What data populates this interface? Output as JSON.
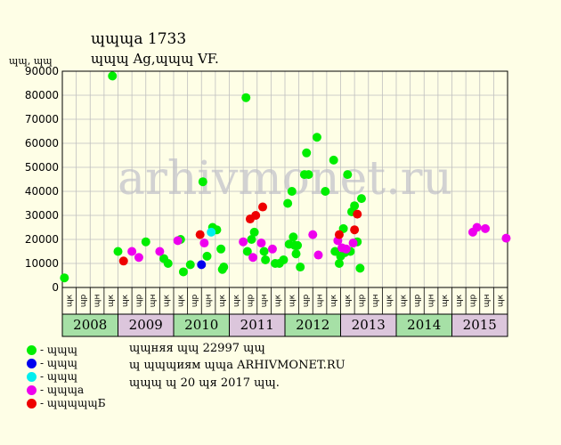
{
  "header": {
    "title": "ɰɰɰа 1733",
    "subtitle": "ɰɰɰ Ag,ɰɰɰ VF.",
    "ylabel": "ɰɰ, ɰɰ"
  },
  "watermark": "arhivmonet.ru",
  "info": {
    "line1": "ɰɰняя ɰɰ 22997 ɰɰ",
    "line2": "ɰ ɰɰɰиям ɰɰа ARHIVMONET.RU",
    "line3": "ɰɰɰ ɰ 20 ɰя 2017 ɰɰ."
  },
  "legend": [
    {
      "label": "- ɰɰɰ",
      "color": "#00ee00",
      "icon": "green-dot-icon"
    },
    {
      "label": "- ɰɰɰ",
      "color": "#0000ee",
      "icon": "blue-dot-icon"
    },
    {
      "label": "- ɰɰɰ",
      "color": "#00eeee",
      "icon": "cyan-dot-icon"
    },
    {
      "label": "- ɰɰɰа",
      "color": "#ee00ee",
      "icon": "magenta-dot-icon"
    },
    {
      "label": "- ɰɰɰɰɰБ",
      "color": "#ee0000",
      "icon": "red-dot-icon"
    }
  ],
  "colors": {
    "background": "#fefee6",
    "plot_bg": "#fefee6",
    "grid": "#bfbfbf",
    "year_a": "#a6e0a6",
    "year_b": "#dcc6dc"
  },
  "chart_data": {
    "type": "scatter",
    "title": "ɰɰɰа 1733",
    "ylabel": "ɰɰ, ɰɰ",
    "ylim": [
      0,
      90000
    ],
    "yticks": [
      "0",
      "10000",
      "20000",
      "30000",
      "40000",
      "50000",
      "60000",
      "70000",
      "80000",
      "90000"
    ],
    "grid": true,
    "x_unit": "quarter index (0 = 1st quarter 2008)",
    "quarter_labels": [
      "ɰк",
      "ɰр",
      "ɰн",
      "ɰк",
      "ɰк",
      "ɰр",
      "ɰн",
      "ɰк",
      "ɰк",
      "ɰр",
      "ɰн",
      "ɰк",
      "ɰк",
      "ɰр",
      "ɰн",
      "ɰк",
      "ɰк",
      "ɰр",
      "ɰн",
      "ɰк",
      "ɰк",
      "ɰр",
      "ɰн",
      "ɰк",
      "ɰк",
      "ɰр",
      "ɰн",
      "ɰк",
      "ɰк",
      "ɰр",
      "ɰн",
      "ɰк"
    ],
    "years": [
      {
        "label": "2008",
        "start": 0,
        "end": 4
      },
      {
        "label": "2009",
        "start": 4,
        "end": 8
      },
      {
        "label": "2010",
        "start": 8,
        "end": 12
      },
      {
        "label": "2011",
        "start": 12,
        "end": 16
      },
      {
        "label": "2012",
        "start": 16,
        "end": 20
      },
      {
        "label": "2013",
        "start": 20,
        "end": 24
      },
      {
        "label": "2014",
        "start": 24,
        "end": 28
      },
      {
        "label": "2015",
        "start": 28,
        "end": 32
      }
    ],
    "series": [
      {
        "color": "#00ee00",
        "points": [
          [
            0.15,
            4000
          ],
          [
            3.6,
            88000
          ],
          [
            4.0,
            15000
          ],
          [
            6.0,
            19000
          ],
          [
            7.3,
            12000
          ],
          [
            7.6,
            10000
          ],
          [
            8.5,
            20000
          ],
          [
            8.7,
            6500
          ],
          [
            9.2,
            9500
          ],
          [
            10.1,
            44000
          ],
          [
            10.4,
            13000
          ],
          [
            10.8,
            25000
          ],
          [
            11.1,
            24000
          ],
          [
            11.4,
            16000
          ],
          [
            11.5,
            7500
          ],
          [
            11.6,
            8500
          ],
          [
            13.2,
            79000
          ],
          [
            13.3,
            15000
          ],
          [
            13.6,
            20000
          ],
          [
            13.8,
            23000
          ],
          [
            14.5,
            15000
          ],
          [
            14.6,
            11500
          ],
          [
            15.3,
            10000
          ],
          [
            15.6,
            10000
          ],
          [
            15.9,
            11500
          ],
          [
            16.2,
            35000
          ],
          [
            16.3,
            18000
          ],
          [
            16.5,
            40000
          ],
          [
            16.6,
            21000
          ],
          [
            16.7,
            17500
          ],
          [
            16.8,
            14000
          ],
          [
            16.9,
            17500
          ],
          [
            17.4,
            47000
          ],
          [
            17.55,
            56000
          ],
          [
            17.7,
            47000
          ],
          [
            18.3,
            62500
          ],
          [
            18.9,
            40000
          ],
          [
            19.5,
            53000
          ],
          [
            19.6,
            15000
          ],
          [
            19.9,
            10000
          ],
          [
            20.0,
            13000
          ],
          [
            20.2,
            24500
          ],
          [
            20.3,
            14500
          ],
          [
            20.5,
            47000
          ],
          [
            20.7,
            15000
          ],
          [
            20.8,
            31500
          ],
          [
            21.0,
            34000
          ],
          [
            21.2,
            19000
          ],
          [
            21.4,
            8000
          ],
          [
            21.5,
            37000
          ],
          [
            17.1,
            8500
          ]
        ]
      },
      {
        "color": "#0000ee",
        "points": [
          [
            10.0,
            9500
          ]
        ]
      },
      {
        "color": "#00eeee",
        "points": [
          [
            10.7,
            23000
          ]
        ]
      },
      {
        "color": "#ee00ee",
        "points": [
          [
            5.0,
            15000
          ],
          [
            5.5,
            12500
          ],
          [
            7.0,
            15000
          ],
          [
            8.3,
            19500
          ],
          [
            10.2,
            18500
          ],
          [
            13.0,
            19000
          ],
          [
            13.7,
            12500
          ],
          [
            14.3,
            18500
          ],
          [
            15.1,
            16000
          ],
          [
            18.0,
            22000
          ],
          [
            18.4,
            13500
          ],
          [
            19.8,
            19500
          ],
          [
            20.1,
            16500
          ],
          [
            20.4,
            16000
          ],
          [
            20.9,
            18500
          ],
          [
            29.5,
            23000
          ],
          [
            29.8,
            25000
          ],
          [
            30.4,
            24500
          ],
          [
            31.9,
            20500
          ]
        ]
      },
      {
        "color": "#ee0000",
        "points": [
          [
            4.4,
            11000
          ],
          [
            9.9,
            22000
          ],
          [
            13.5,
            28500
          ],
          [
            13.9,
            30000
          ],
          [
            14.4,
            33500
          ],
          [
            19.9,
            22000
          ],
          [
            21.0,
            24000
          ],
          [
            21.2,
            30500
          ]
        ]
      }
    ]
  }
}
